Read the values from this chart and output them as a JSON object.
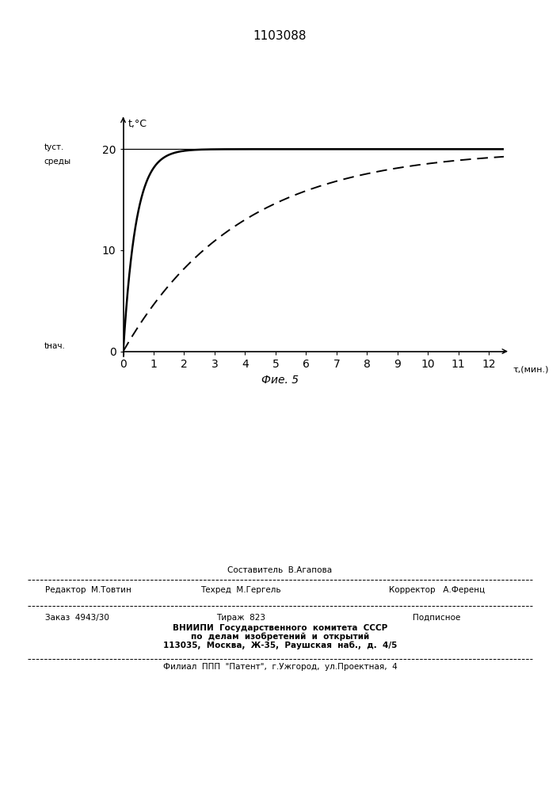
{
  "title": "1103088",
  "title_fontsize": 11,
  "ylabel": "t,°C",
  "xlabel": "τ,(мин.)",
  "fig_caption": "Фие. 5",
  "xlim": [
    0,
    12.5
  ],
  "ylim": [
    -0.5,
    23
  ],
  "xticks": [
    0,
    1,
    2,
    3,
    4,
    5,
    6,
    7,
    8,
    9,
    10,
    11,
    12
  ],
  "yticks": [
    0,
    10,
    20
  ],
  "t_ust": 20,
  "tau_fast": 0.42,
  "tau_slow": 3.8,
  "label_t_ust_line1": "tуст.",
  "label_t_ust_line2": "среды",
  "label_t_nach": "tнач.",
  "line_color": "#000000"
}
